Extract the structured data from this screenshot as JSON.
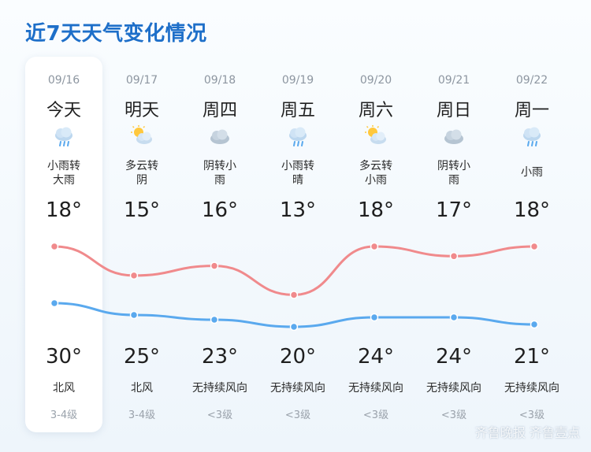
{
  "title": "近7天天气变化情况",
  "days": [
    {
      "date": "09/16",
      "day": "今天",
      "icon": "rain-cloud-icon",
      "desc": "小雨转\n大雨",
      "temp_curve_top": 18,
      "temp_curve_bottom": 30,
      "high_label": "18°",
      "low_label": "30°",
      "wind": "北风",
      "level": "3-4级"
    },
    {
      "date": "09/17",
      "day": "明天",
      "icon": "sun-cloud-icon",
      "desc": "多云转\n阴",
      "temp_curve_top": 15,
      "temp_curve_bottom": 25,
      "high_label": "15°",
      "low_label": "25°",
      "wind": "北风",
      "level": "3-4级"
    },
    {
      "date": "09/18",
      "day": "周四",
      "icon": "cloud-icon",
      "desc": "阴转小\n雨",
      "temp_curve_top": 16,
      "temp_curve_bottom": 23,
      "high_label": "16°",
      "low_label": "23°",
      "wind": "无持续风向",
      "level": "<3级"
    },
    {
      "date": "09/19",
      "day": "周五",
      "icon": "rain-cloud-icon",
      "desc": "小雨转\n晴",
      "temp_curve_top": 13,
      "temp_curve_bottom": 20,
      "high_label": "13°",
      "low_label": "20°",
      "wind": "无持续风向",
      "level": "<3级"
    },
    {
      "date": "09/20",
      "day": "周六",
      "icon": "sun-cloud-icon",
      "desc": "多云转\n小雨",
      "temp_curve_top": 18,
      "temp_curve_bottom": 24,
      "high_label": "18°",
      "low_label": "24°",
      "wind": "无持续风向",
      "level": "<3级"
    },
    {
      "date": "09/21",
      "day": "周日",
      "icon": "cloud-icon",
      "desc": "阴转小\n雨",
      "temp_curve_top": 17,
      "temp_curve_bottom": 24,
      "high_label": "17°",
      "low_label": "24°",
      "wind": "无持续风向",
      "level": "<3级"
    },
    {
      "date": "09/22",
      "day": "周一",
      "icon": "rain-cloud-icon",
      "desc": "小雨",
      "temp_curve_top": 18,
      "temp_curve_bottom": 21,
      "high_label": "18°",
      "low_label": "21°",
      "wind": "无持续风向",
      "level": "<3级"
    }
  ],
  "colors": {
    "title": "#1e6fc9",
    "line_high": "#f08a8c",
    "line_low": "#5aa9ee"
  },
  "watermark": "齐鲁晚报 齐鲁壹点"
}
